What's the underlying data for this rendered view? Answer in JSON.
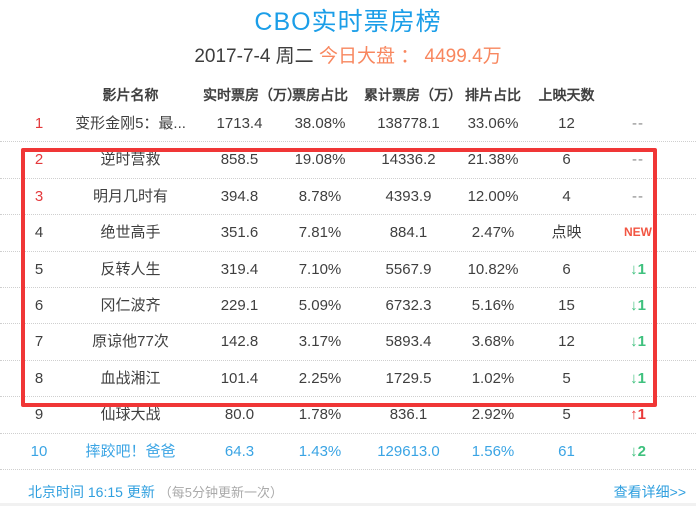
{
  "header": {
    "title": "CBO实时票房榜",
    "date": "2017-7-4 周二",
    "market_total": "今日大盘 ： 4499.4万"
  },
  "table": {
    "columns": {
      "name": "影片名称",
      "realtime": "实时票房（万）",
      "share": "票房占比",
      "cumulative": "累计票房（万）",
      "screen_share": "排片占比",
      "days": "上映天数"
    },
    "rows": [
      {
        "rank": "1",
        "name": "变形金刚5：最...",
        "realtime": "1713.4",
        "share": "38.08%",
        "cumulative": "138778.1",
        "screen_share": "33.06%",
        "days": "12",
        "change": "--",
        "change_style": "dash",
        "rank_style": "red",
        "row_style": ""
      },
      {
        "rank": "2",
        "name": "逆时营救",
        "realtime": "858.5",
        "share": "19.08%",
        "cumulative": "14336.2",
        "screen_share": "21.38%",
        "days": "6",
        "change": "--",
        "change_style": "dash",
        "rank_style": "red",
        "row_style": ""
      },
      {
        "rank": "3",
        "name": "明月几时有",
        "realtime": "394.8",
        "share": "8.78%",
        "cumulative": "4393.9",
        "screen_share": "12.00%",
        "days": "4",
        "change": "--",
        "change_style": "dash",
        "rank_style": "red",
        "row_style": ""
      },
      {
        "rank": "4",
        "name": "绝世高手",
        "realtime": "351.6",
        "share": "7.81%",
        "cumulative": "884.1",
        "screen_share": "2.47%",
        "days": "点映",
        "change": "NEW",
        "change_style": "new",
        "rank_style": "",
        "row_style": ""
      },
      {
        "rank": "5",
        "name": "反转人生",
        "realtime": "319.4",
        "share": "7.10%",
        "cumulative": "5567.9",
        "screen_share": "10.82%",
        "days": "6",
        "change": "↓1",
        "change_style": "down",
        "rank_style": "",
        "row_style": ""
      },
      {
        "rank": "6",
        "name": "冈仁波齐",
        "realtime": "229.1",
        "share": "5.09%",
        "cumulative": "6732.3",
        "screen_share": "5.16%",
        "days": "15",
        "change": "↓1",
        "change_style": "down",
        "rank_style": "",
        "row_style": ""
      },
      {
        "rank": "7",
        "name": "原谅他77次",
        "realtime": "142.8",
        "share": "3.17%",
        "cumulative": "5893.4",
        "screen_share": "3.68%",
        "days": "12",
        "change": "↓1",
        "change_style": "down",
        "rank_style": "",
        "row_style": ""
      },
      {
        "rank": "8",
        "name": "血战湘江",
        "realtime": "101.4",
        "share": "2.25%",
        "cumulative": "1729.5",
        "screen_share": "1.02%",
        "days": "5",
        "change": "↓1",
        "change_style": "down",
        "rank_style": "",
        "row_style": ""
      },
      {
        "rank": "9",
        "name": "仙球大战",
        "realtime": "80.0",
        "share": "1.78%",
        "cumulative": "836.1",
        "screen_share": "2.92%",
        "days": "5",
        "change": "↑1",
        "change_style": "up",
        "rank_style": "",
        "row_style": ""
      },
      {
        "rank": "10",
        "name": "摔跤吧！爸爸",
        "realtime": "64.3",
        "share": "1.43%",
        "cumulative": "129613.0",
        "screen_share": "1.56%",
        "days": "61",
        "change": "↓2",
        "change_style": "down",
        "rank_style": "",
        "row_style": "blue"
      }
    ]
  },
  "footer": {
    "update_time": "北京时间 16:15 更新",
    "update_note": "（每5分钟更新一次）",
    "detail_link": "查看详细>>"
  },
  "colors": {
    "accent_blue": "#1b9ee8",
    "orange": "#f8875f",
    "highlight_red": "#f03636",
    "rank_red": "#e4393c",
    "down_green": "#3fc17e",
    "up_red": "#e93a3a"
  }
}
